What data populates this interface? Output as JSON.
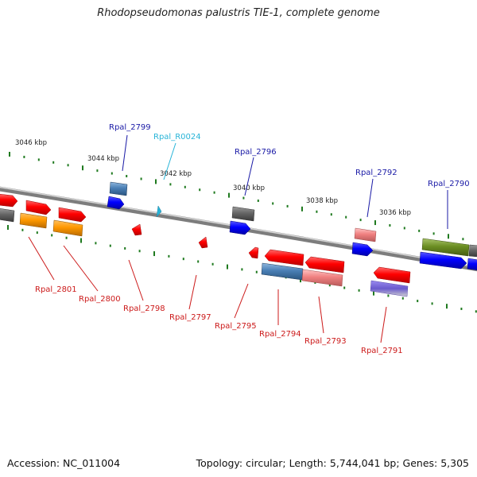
{
  "title": "Rhodopseudomonas palustris TIE-1, complete genome",
  "footer": {
    "accession": "Accession: NC_011004",
    "topology": "Topology: circular; Length: 5,744,041 bp; Genes: 5,305"
  },
  "colors": {
    "backbone": "#8c8c8c",
    "tick": "#1f7a1f",
    "label_forward": "#1a1aa6",
    "label_reverse": "#cc1a1a",
    "label_rna": "#27b4d8"
  },
  "position_labels": [
    "3046 kbp",
    "3044 kbp",
    "3042 kbp",
    "3040 kbp",
    "3038 kbp",
    "3036 kbp"
  ],
  "gene_labels_top": [
    "Rpal_2799",
    "Rpal_R0024",
    "Rpal_2796",
    "Rpal_2792",
    "Rpal_2790"
  ],
  "gene_labels_bottom": [
    "Rpal_2801",
    "Rpal_2800",
    "Rpal_2798",
    "Rpal_2797",
    "Rpal_2795",
    "Rpal_2794",
    "Rpal_2793",
    "Rpal_2791"
  ]
}
